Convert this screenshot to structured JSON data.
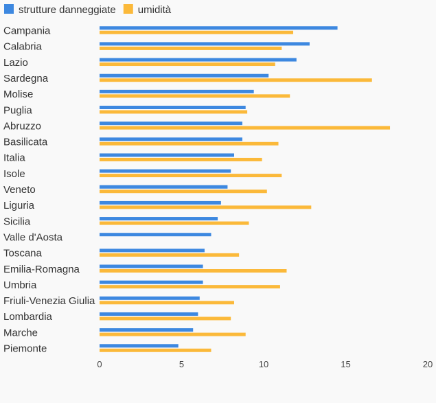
{
  "chart_data": {
    "type": "bar",
    "orientation": "horizontal",
    "title": "",
    "xlabel": "",
    "ylabel": "",
    "xlim": [
      0,
      20
    ],
    "x_ticks": [
      0,
      5,
      10,
      15,
      20
    ],
    "grid": false,
    "legend_position": "top-left",
    "categories": [
      "Campania",
      "Calabria",
      "Lazio",
      "Sardegna",
      "Molise",
      "Puglia",
      "Abruzzo",
      "Basilicata",
      "Italia",
      "Isole",
      "Veneto",
      "Liguria",
      "Sicilia",
      "Valle d'Aosta",
      "Toscana",
      "Emilia-Romagna",
      "Umbria",
      "Friuli-Venezia Giulia",
      "Lombardia",
      "Marche",
      "Piemonte"
    ],
    "series": [
      {
        "name": "strutture danneggiate",
        "color": "#3d88e0",
        "values": [
          14.5,
          12.8,
          12.0,
          10.3,
          9.4,
          8.9,
          8.7,
          8.7,
          8.2,
          8.0,
          7.8,
          7.4,
          7.2,
          6.8,
          6.4,
          6.3,
          6.3,
          6.1,
          6.0,
          5.7,
          4.8
        ]
      },
      {
        "name": "umidità",
        "color": "#fbb93a",
        "values": [
          11.8,
          11.1,
          10.7,
          16.6,
          11.6,
          9.0,
          17.7,
          10.9,
          9.9,
          11.1,
          10.2,
          12.9,
          9.1,
          null,
          8.5,
          11.4,
          11.0,
          8.2,
          8.0,
          8.9,
          6.8
        ]
      }
    ]
  }
}
